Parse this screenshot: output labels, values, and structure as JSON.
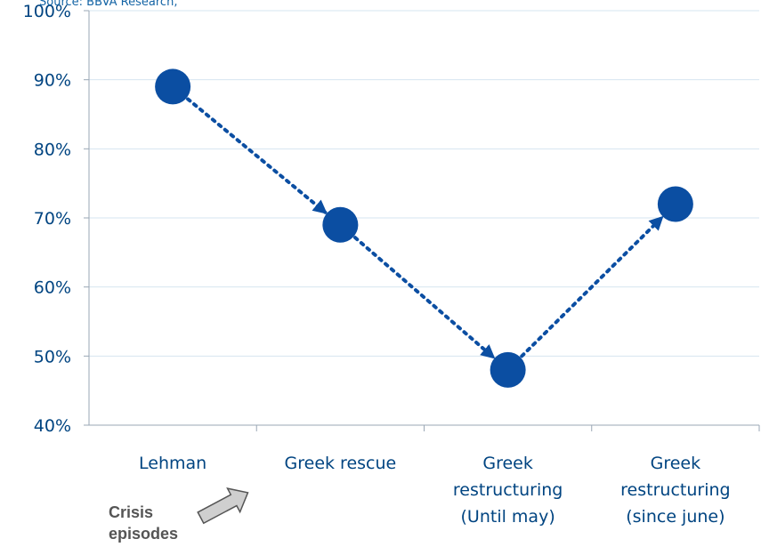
{
  "source": "Source: BBVA Research,",
  "episodes_label": [
    "Crisis",
    "episodes"
  ],
  "colors": {
    "point": "#0b4ea2",
    "line": "#0b4ea2",
    "axis": "#9aa7b5",
    "grid": "#d6e4f0",
    "text": "#004481"
  },
  "chart_data": {
    "type": "line",
    "title": "",
    "xlabel": "",
    "ylabel": "",
    "categories": [
      [
        "Lehman"
      ],
      [
        "Greek rescue"
      ],
      [
        "Greek",
        "restructuring",
        "(Until may)"
      ],
      [
        "Greek",
        "restructuring",
        "(since june)"
      ]
    ],
    "values": [
      89,
      69,
      48,
      72
    ],
    "y_unit": "%",
    "ylim": [
      40,
      100
    ],
    "y_ticks": [
      "100%",
      "90%",
      "80%",
      "70%",
      "60%",
      "50%",
      "40%"
    ],
    "grid": true,
    "line_style": "dotted-with-arrows",
    "legend": "none"
  }
}
